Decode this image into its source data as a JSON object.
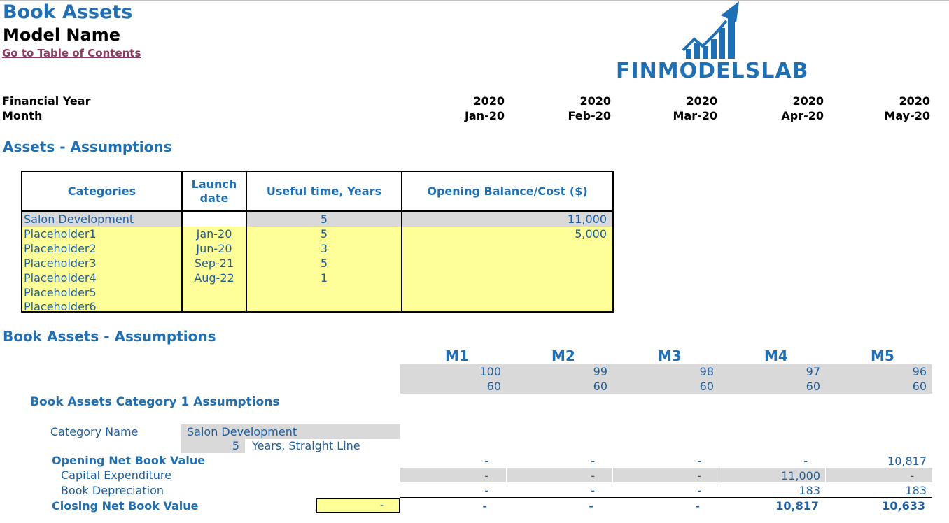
{
  "page": {
    "title": "Book Assets",
    "model_name": "Model Name",
    "toc_link": "Go to Table of Contents",
    "logo_text": "FINMODELSLAB"
  },
  "timeline": {
    "fy_label": "Financial Year",
    "month_label": "Month",
    "years": [
      "2020",
      "2020",
      "2020",
      "2020",
      "2020"
    ],
    "months": [
      "Jan-20",
      "Feb-20",
      "Mar-20",
      "Apr-20",
      "May-20"
    ]
  },
  "assets_section": {
    "title": "Assets - Assumptions",
    "headers": [
      "Categories",
      "Launch date",
      "Useful time, Years",
      "Opening Balance/Cost ($)"
    ],
    "rows": [
      {
        "category": "Salon Development",
        "launch": "",
        "useful": "5",
        "opening": "11,000"
      },
      {
        "category": "Placeholder1",
        "launch": "Jan-20",
        "useful": "5",
        "opening": "5,000"
      },
      {
        "category": "Placeholder2",
        "launch": "Jun-20",
        "useful": "3",
        "opening": ""
      },
      {
        "category": "Placeholder3",
        "launch": "Sep-21",
        "useful": "5",
        "opening": ""
      },
      {
        "category": "Placeholder4",
        "launch": "Aug-22",
        "useful": "1",
        "opening": ""
      },
      {
        "category": "Placeholder5",
        "launch": "",
        "useful": "",
        "opening": ""
      },
      {
        "category": "Placeholder6",
        "launch": "",
        "useful": "",
        "opening": ""
      }
    ]
  },
  "book_section": {
    "title": "Book Assets - Assumptions",
    "period_labels": [
      "M1",
      "M2",
      "M3",
      "M4",
      "M5"
    ],
    "row_a": [
      "100",
      "99",
      "98",
      "97",
      "96"
    ],
    "row_b": [
      "60",
      "60",
      "60",
      "60",
      "60"
    ],
    "category_title": "Book Assets Category 1 Assumptions",
    "category_name_label": "Category Name",
    "category_name_value": "Salon Development",
    "years_value": "5",
    "years_method": "Years, Straight Line",
    "opening_nbv_label": "Opening Net Book Value",
    "opening_nbv": [
      "-",
      "-",
      "-",
      "-",
      "10,817"
    ],
    "capex_label": "Capital Expenditure",
    "capex": [
      "-",
      "-",
      "-",
      "11,000",
      "-"
    ],
    "depr_label": "Book Depreciation",
    "depr": [
      "-",
      "-",
      "-",
      "183",
      "183"
    ],
    "closing_nbv_label": "Closing Net Book Value",
    "closing_input": "-",
    "closing_nbv": [
      "-",
      "-",
      "-",
      "10,817",
      "10,633"
    ]
  },
  "colors": {
    "accent_blue": "#1f6fb5",
    "link_color": "#8b3a62",
    "input_yellow": "#ffff99",
    "grey_fill": "#d9d9d9"
  }
}
